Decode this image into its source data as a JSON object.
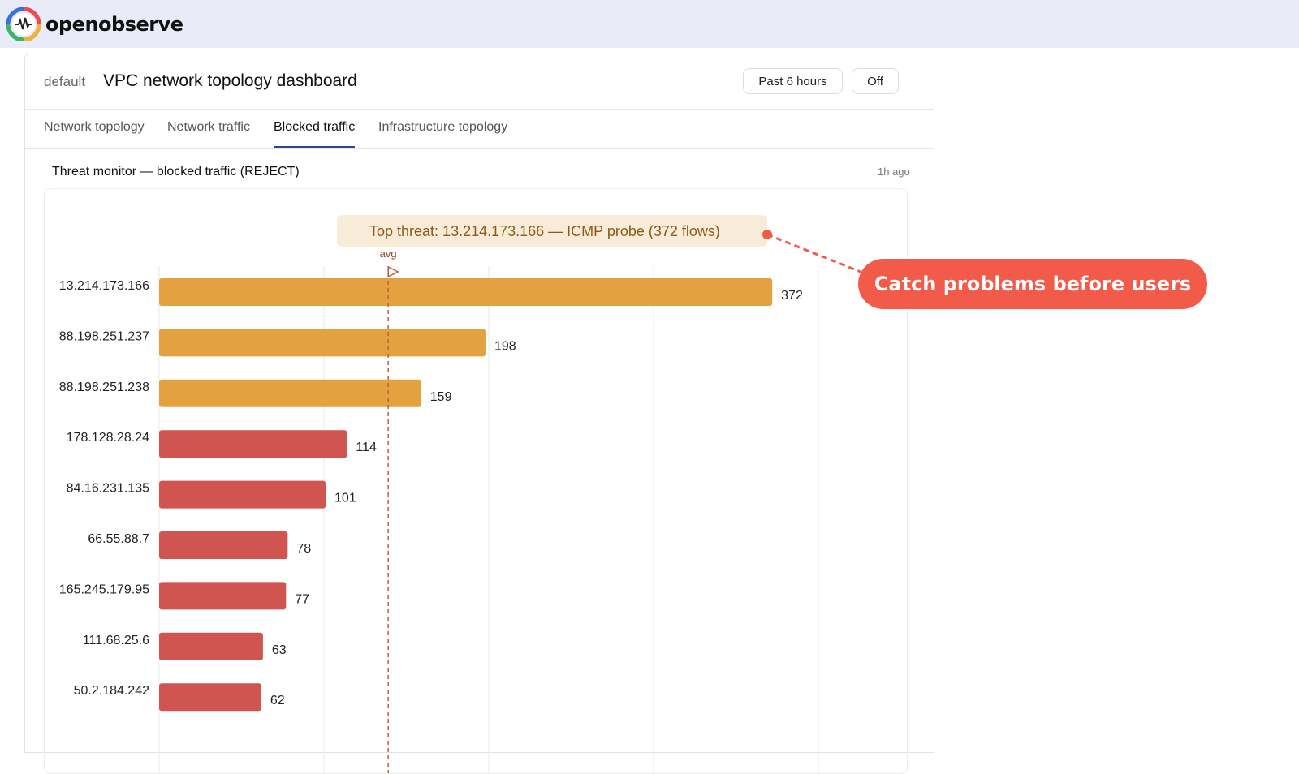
{
  "brand": {
    "name": "openobserve"
  },
  "dashboard": {
    "org": "default",
    "title": "VPC network topology dashboard",
    "time_range": "Past 6 hours",
    "refresh": "Off"
  },
  "tabs": [
    {
      "label": "Network topology",
      "active": false
    },
    {
      "label": "Network traffic",
      "active": false
    },
    {
      "label": "Blocked traffic",
      "active": true
    },
    {
      "label": "Infrastructure topology",
      "active": false
    }
  ],
  "panel": {
    "title": "Threat monitor — blocked traffic (REJECT)",
    "updated": "1h ago"
  },
  "annotation": {
    "text": "Top threat: 13.214.173.166 — ICMP probe (372 flows)",
    "marker_label": "avg"
  },
  "callout": {
    "text": "Catch problems before users do"
  },
  "colors": {
    "high": "#e3a23f",
    "medium": "#d05550",
    "annotation_bg": "#f8ecd9",
    "annotation_text": "#8a5a16",
    "avg_line": "#c0613e",
    "callout": "#f25a4a"
  },
  "chart_data": {
    "type": "bar",
    "orientation": "horizontal",
    "categories": [
      "13.214.173.166",
      "88.198.251.237",
      "88.198.251.238",
      "178.128.28.24",
      "84.16.231.135",
      "66.55.88.7",
      "165.245.179.95",
      "111.68.25.6",
      "50.2.184.242"
    ],
    "values": [
      372,
      198,
      159,
      114,
      101,
      78,
      77,
      63,
      62
    ],
    "xlim": [
      0,
      400
    ],
    "avg": 139,
    "grid": true
  }
}
